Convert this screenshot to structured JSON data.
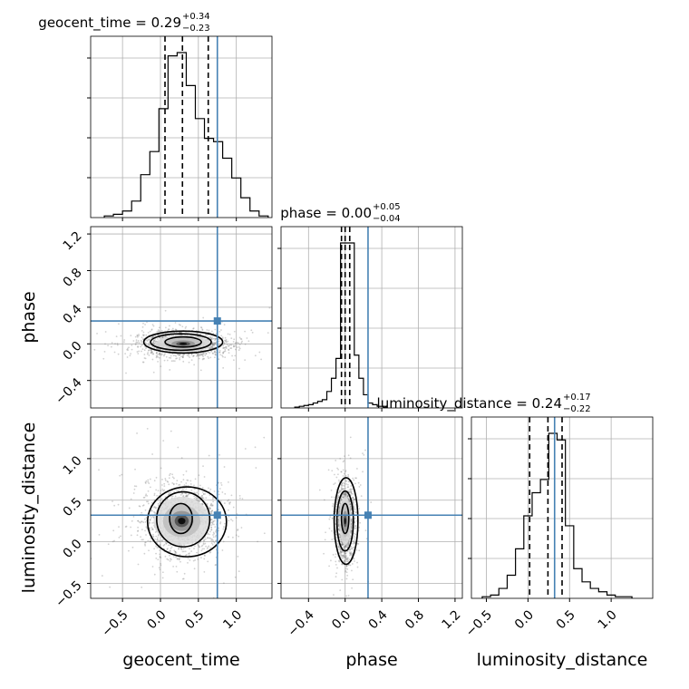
{
  "chart_data": {
    "type": "corner",
    "parameters": [
      "geocent_time",
      "phase",
      "luminosity_distance"
    ],
    "truths": [
      0.75,
      0.25,
      0.32
    ],
    "colors": {
      "truth": "#4682b4",
      "hist": "#000000",
      "grid": "#b0b0b0",
      "points": "#7a7a7a"
    },
    "grid": true,
    "titles": [
      {
        "param": "geocent_time",
        "label": "geocent_time",
        "value": "0.29",
        "plus": "+0.34",
        "minus": "−0.23"
      },
      {
        "param": "phase",
        "label": "phase",
        "value": "0.00",
        "plus": "+0.05",
        "minus": "−0.04"
      },
      {
        "param": "luminosity_distance",
        "label": "luminosity_distance",
        "value": "0.24",
        "plus": "+0.17",
        "minus": "−0.22"
      }
    ],
    "axis_labels": {
      "x": [
        "geocent_time",
        "phase",
        "luminosity_distance"
      ],
      "y": [
        "phase",
        "luminosity_distance"
      ]
    },
    "ranges": {
      "geocent_time": [
        -0.92,
        1.47
      ],
      "phase": [
        -0.7,
        1.28
      ],
      "luminosity_distance": [
        -0.68,
        1.5
      ]
    },
    "ticks": {
      "geocent_time": [
        -0.5,
        0.0,
        0.5,
        1.0
      ],
      "phase": [
        -0.4,
        0.0,
        0.4,
        0.8,
        1.2
      ],
      "luminosity_distance": [
        -0.5,
        0.0,
        0.5,
        1.0
      ]
    },
    "tick_labels": {
      "geocent_time": [
        "−0.5",
        "0.0",
        "0.5",
        "1.0"
      ],
      "phase": [
        "−0.4",
        "0.0",
        "0.4",
        "0.8",
        "1.2"
      ],
      "luminosity_distance": [
        "−0.5",
        "0.0",
        "0.5",
        "1.0"
      ]
    },
    "quantile_lines": {
      "geocent_time": [
        0.06,
        0.29,
        0.63
      ],
      "phase": [
        -0.04,
        0.0,
        0.05
      ],
      "luminosity_distance": [
        0.02,
        0.24,
        0.41
      ]
    },
    "histograms": {
      "geocent_time": {
        "edges": [
          -0.74,
          -0.62,
          -0.5,
          -0.38,
          -0.26,
          -0.14,
          -0.02,
          0.1,
          0.22,
          0.34,
          0.46,
          0.58,
          0.7,
          0.82,
          0.94,
          1.06,
          1.18,
          1.3,
          1.42
        ],
        "counts": [
          1,
          2,
          4,
          10,
          26,
          40,
          66,
          98,
          100,
          80,
          60,
          48,
          46,
          36,
          24,
          12,
          4,
          1
        ]
      },
      "phase": {
        "edges": [
          -0.55,
          -0.5,
          -0.45,
          -0.4,
          -0.35,
          -0.3,
          -0.25,
          -0.2,
          -0.15,
          -0.1,
          -0.05,
          0.0,
          0.05,
          0.1,
          0.15,
          0.2,
          0.25,
          0.3,
          0.35,
          0.4,
          0.45
        ],
        "counts": [
          0.5,
          1,
          1.5,
          2,
          3,
          4,
          5,
          10,
          18,
          30,
          100,
          100,
          100,
          32,
          18,
          8,
          3,
          2,
          1,
          1
        ]
      },
      "luminosity_distance": {
        "edges": [
          -0.55,
          -0.45,
          -0.35,
          -0.25,
          -0.15,
          -0.05,
          0.05,
          0.15,
          0.25,
          0.35,
          0.45,
          0.55,
          0.65,
          0.75,
          0.85,
          0.95,
          1.05,
          1.15,
          1.25
        ],
        "counts": [
          1,
          2,
          6,
          14,
          30,
          50,
          64,
          72,
          100,
          96,
          44,
          18,
          10,
          6,
          4,
          2,
          1,
          1
        ]
      }
    },
    "joint": [
      {
        "x": "geocent_time",
        "y": "phase",
        "mean": [
          0.3,
          0.0
        ],
        "sd": [
          0.28,
          0.07
        ],
        "contours": [
          [
            0.3,
            0.02,
            0.24,
            0.055
          ],
          [
            0.27,
            0.02,
            0.4,
            0.09
          ],
          [
            0.3,
            0.02,
            0.52,
            0.12
          ]
        ]
      },
      {
        "x": "geocent_time",
        "y": "luminosity_distance",
        "mean": [
          0.28,
          0.25
        ],
        "sd": [
          0.28,
          0.22
        ],
        "contours": [
          [
            0.27,
            0.28,
            0.15,
            0.18
          ],
          [
            0.3,
            0.27,
            0.35,
            0.33
          ],
          [
            0.35,
            0.24,
            0.52,
            0.42
          ]
        ]
      },
      {
        "x": "phase",
        "y": "luminosity_distance",
        "mean": [
          0.0,
          0.25
        ],
        "sd": [
          0.05,
          0.22
        ],
        "contours": [
          [
            0.0,
            0.28,
            0.04,
            0.18
          ],
          [
            0.0,
            0.25,
            0.09,
            0.36
          ],
          [
            0.01,
            0.25,
            0.13,
            0.52
          ]
        ]
      }
    ]
  }
}
